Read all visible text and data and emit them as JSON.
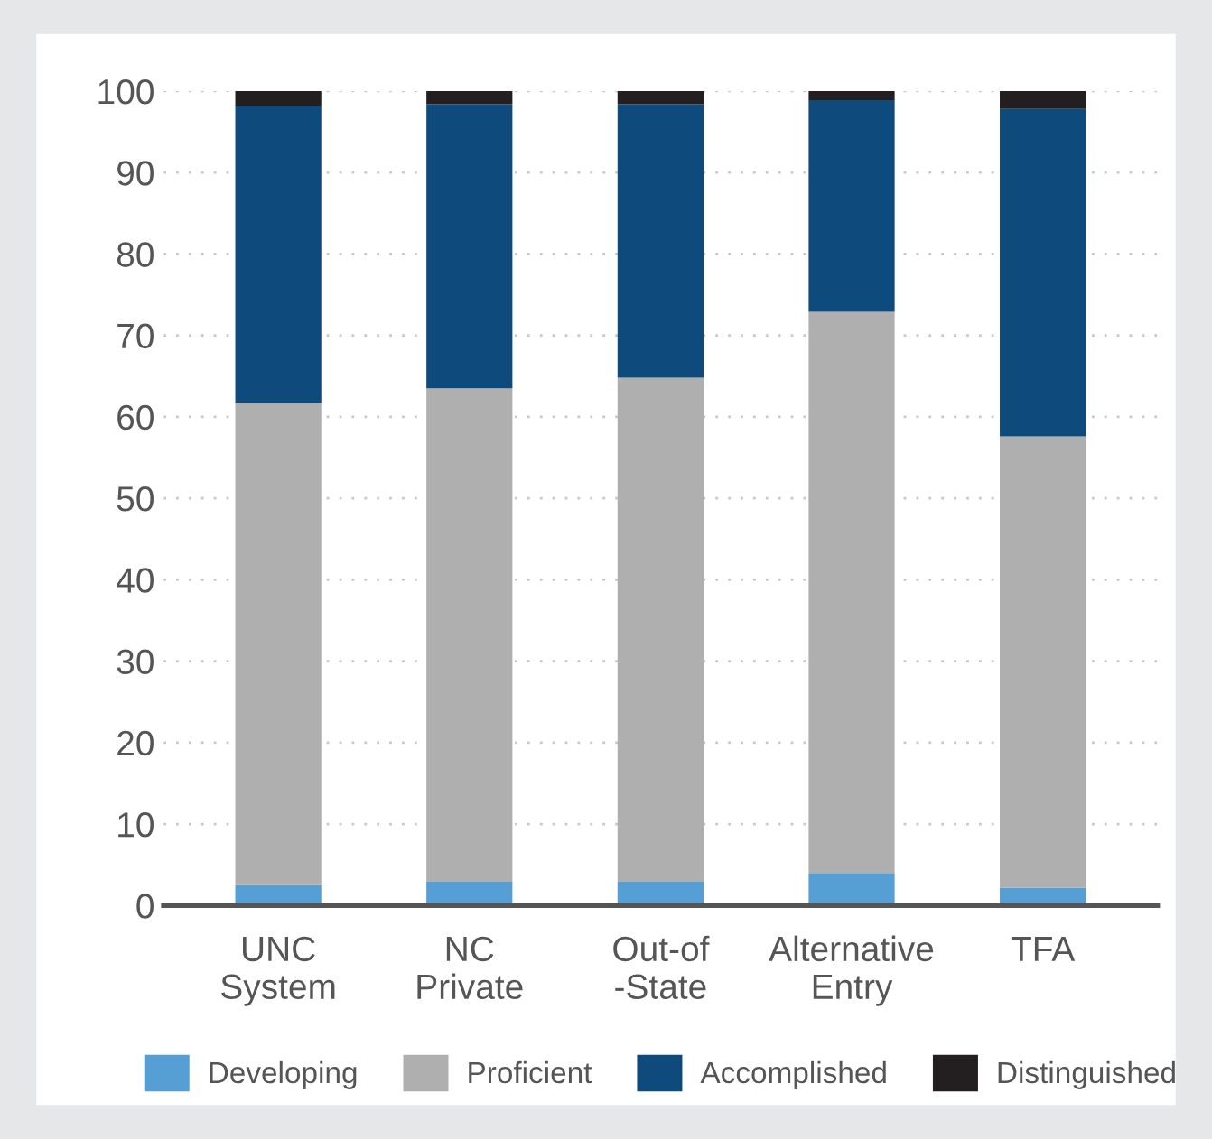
{
  "chart_data": {
    "type": "bar",
    "stacked": true,
    "categories": [
      "UNC\nSystem",
      "NC\nPrivate",
      "Out-of\n-State",
      "Alternative\nEntry",
      "TFA"
    ],
    "series": [
      {
        "name": "Developing",
        "color": "#559fd4",
        "values": [
          2.5,
          2.9,
          2.9,
          4.0,
          2.2
        ]
      },
      {
        "name": "Proficient",
        "color": "#afafaf",
        "values": [
          59.2,
          60.6,
          61.9,
          68.9,
          55.4
        ]
      },
      {
        "name": "Accomplished",
        "color": "#0e4a7c",
        "values": [
          36.5,
          34.9,
          33.6,
          26.0,
          40.2
        ]
      },
      {
        "name": "Distinguished",
        "color": "#231f20",
        "values": [
          1.8,
          1.6,
          1.6,
          1.1,
          2.2
        ]
      }
    ],
    "ylim": [
      0,
      100
    ],
    "yticks": [
      0,
      10,
      20,
      30,
      40,
      50,
      60,
      70,
      80,
      90,
      100
    ],
    "grid": "y",
    "legend": "bottom"
  }
}
